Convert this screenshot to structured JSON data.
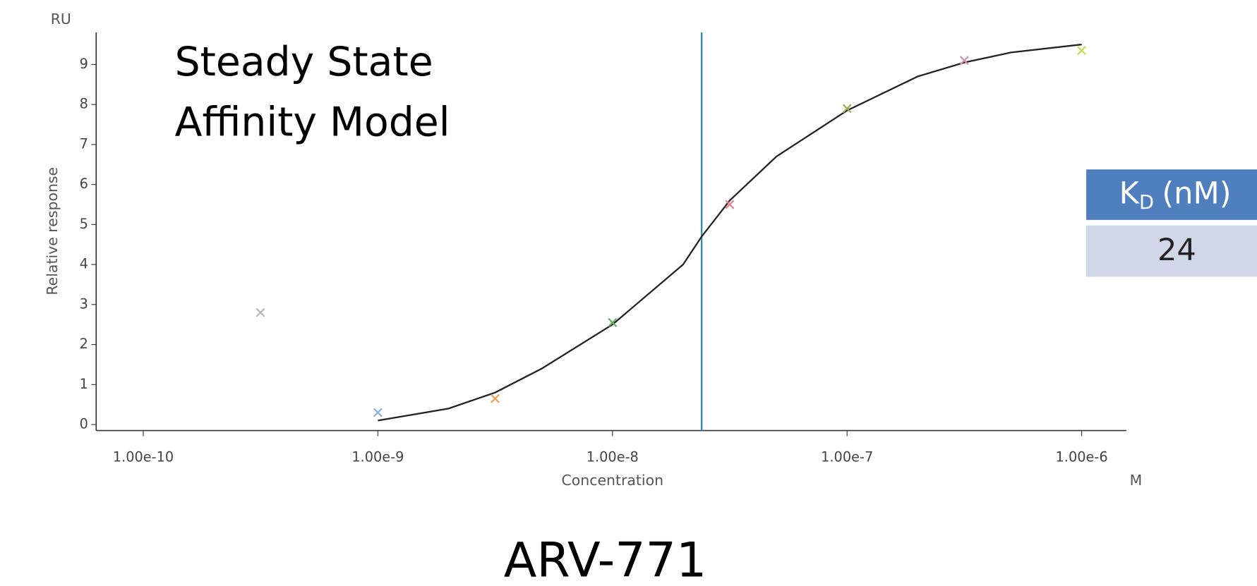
{
  "chart_data": {
    "type": "scatter",
    "title": "ARV-771",
    "annotation": [
      "Steady State",
      "Affinity Model"
    ],
    "x_label": "Concentration",
    "x_unit": "M",
    "y_label": "Relative response",
    "y_unit": "RU",
    "x_log": true,
    "x": [
      3.16e-10,
      1e-09,
      3.16e-09,
      1e-08,
      3.16e-08,
      1e-07,
      3.16e-07,
      1e-06
    ],
    "values": [
      2.8,
      0.3,
      0.65,
      2.55,
      5.5,
      7.9,
      9.1,
      9.35
    ],
    "colors": [
      "#b8b8b8",
      "#8fb0e0",
      "#f0a050",
      "#6ab06a",
      "#e88090",
      "#a8a850",
      "#d090b0",
      "#c8d860"
    ],
    "fit": {
      "color": "#222222",
      "x": [
        1e-09,
        2e-09,
        3.16e-09,
        5e-09,
        1e-08,
        2e-08,
        2.4e-08,
        3.16e-08,
        5e-08,
        1e-07,
        2e-07,
        3.16e-07,
        5e-07,
        1e-06
      ],
      "values": [
        0.1,
        0.4,
        0.8,
        1.4,
        2.5,
        4.0,
        4.7,
        5.6,
        6.7,
        7.85,
        8.7,
        9.05,
        9.3,
        9.5
      ]
    },
    "kd_line": {
      "x": 2.4e-08,
      "color": "#2a8ab0"
    },
    "xlim": [
      6.3e-11,
      1.55e-06
    ],
    "xticks": [
      {
        "value": 1e-10,
        "label": "1.00e-10"
      },
      {
        "value": 1e-09,
        "label": "1.00e-9"
      },
      {
        "value": 1e-08,
        "label": "1.00e-8"
      },
      {
        "value": 1e-07,
        "label": "1.00e-7"
      },
      {
        "value": 1e-06,
        "label": "1.00e-6"
      }
    ],
    "ylim": [
      -0.15,
      9.8
    ],
    "yticks": [
      0,
      1,
      2,
      3,
      4,
      5,
      6,
      7,
      8,
      9
    ]
  },
  "kd_table": {
    "header": {
      "symbol": "K",
      "subscript": "D",
      "unit": "(nM)"
    },
    "value": 24
  }
}
